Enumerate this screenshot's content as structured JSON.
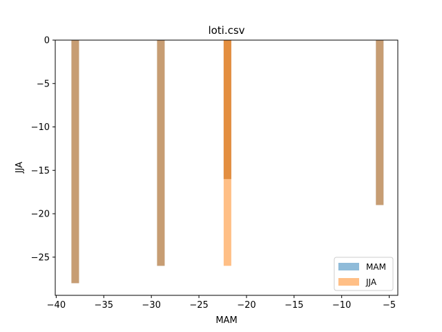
{
  "chart_data": {
    "type": "bar",
    "title": "loti.csv",
    "xlabel": "MAM",
    "ylabel": "JJA",
    "xlim": [
      -40.1,
      -4.1
    ],
    "ylim": [
      -29.4,
      0
    ],
    "xticks": [
      -40,
      -35,
      -30,
      -25,
      -20,
      -15,
      -10,
      -5
    ],
    "xtick_labels": [
      "−40",
      "−35",
      "−30",
      "−25",
      "−20",
      "−15",
      "−10",
      "−5"
    ],
    "yticks": [
      0,
      -5,
      -10,
      -15,
      -20,
      -25
    ],
    "ytick_labels": [
      "0",
      "−5",
      "−10",
      "−15",
      "−20",
      "−25"
    ],
    "bar_width": 0.8,
    "grid": false,
    "legend_position": "lower-right",
    "series": [
      {
        "name": "MAM",
        "color": "#1f77b4",
        "alpha": 0.5,
        "x": [
          -38,
          -29,
          -22,
          -6
        ],
        "values": [
          -28,
          -26,
          -16,
          -19
        ]
      },
      {
        "name": "JJA",
        "color": "#ff7f0e",
        "alpha": 0.5,
        "x": [
          -38,
          -29,
          -22,
          -22,
          -6
        ],
        "values": [
          -28,
          -26,
          -26,
          -16,
          -19
        ]
      }
    ]
  }
}
